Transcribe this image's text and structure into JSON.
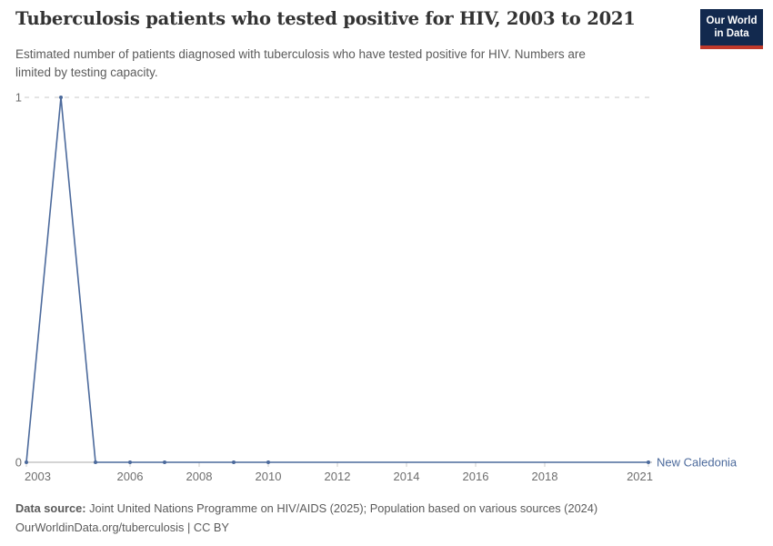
{
  "header": {
    "title": "Tuberculosis patients who tested positive for HIV, 2003 to 2021",
    "subtitle_line1": "Estimated number of patients diagnosed with tuberculosis who have tested positive for HIV. Numbers are",
    "subtitle_line2": "limited by testing capacity."
  },
  "logo": {
    "line1": "Our World",
    "line2": "in Data",
    "bg_color": "#12294E",
    "stripe_color": "#C0392B",
    "text_color": "#ffffff"
  },
  "chart_data": {
    "type": "line",
    "title": "Tuberculosis patients who tested positive for HIV, 2003 to 2021",
    "xlabel": "",
    "ylabel": "",
    "xlim": [
      2003,
      2021
    ],
    "ylim": [
      0,
      1
    ],
    "x_ticks": [
      2003,
      2006,
      2008,
      2010,
      2012,
      2014,
      2016,
      2018,
      2021
    ],
    "y_ticks": [
      0,
      1
    ],
    "grid": "horizontal dashed gridline at y=1, solid axis at y=0",
    "legend_position": "end-of-line label",
    "grid_color": "#dcdcdc",
    "axis_color": "#a8a8a8",
    "tick_color": "#cccccc",
    "tick_label_color": "#6e6e6e",
    "series": [
      {
        "name": "New Caledonia",
        "color": "#4C6A9C",
        "points": [
          {
            "x": 2003,
            "y": 0
          },
          {
            "x": 2004,
            "y": 1
          },
          {
            "x": 2005,
            "y": 0
          },
          {
            "x": 2006,
            "y": 0
          },
          {
            "x": 2007,
            "y": 0
          },
          {
            "x": 2009,
            "y": 0
          },
          {
            "x": 2010,
            "y": 0
          },
          {
            "x": 2021,
            "y": 0
          }
        ]
      }
    ]
  },
  "footer": {
    "source_label": "Data source:",
    "source_text": " Joint United Nations Programme on HIV/AIDS (2025); Population based on various sources (2024)",
    "license_line": "OurWorldinData.org/tuberculosis | CC BY"
  }
}
